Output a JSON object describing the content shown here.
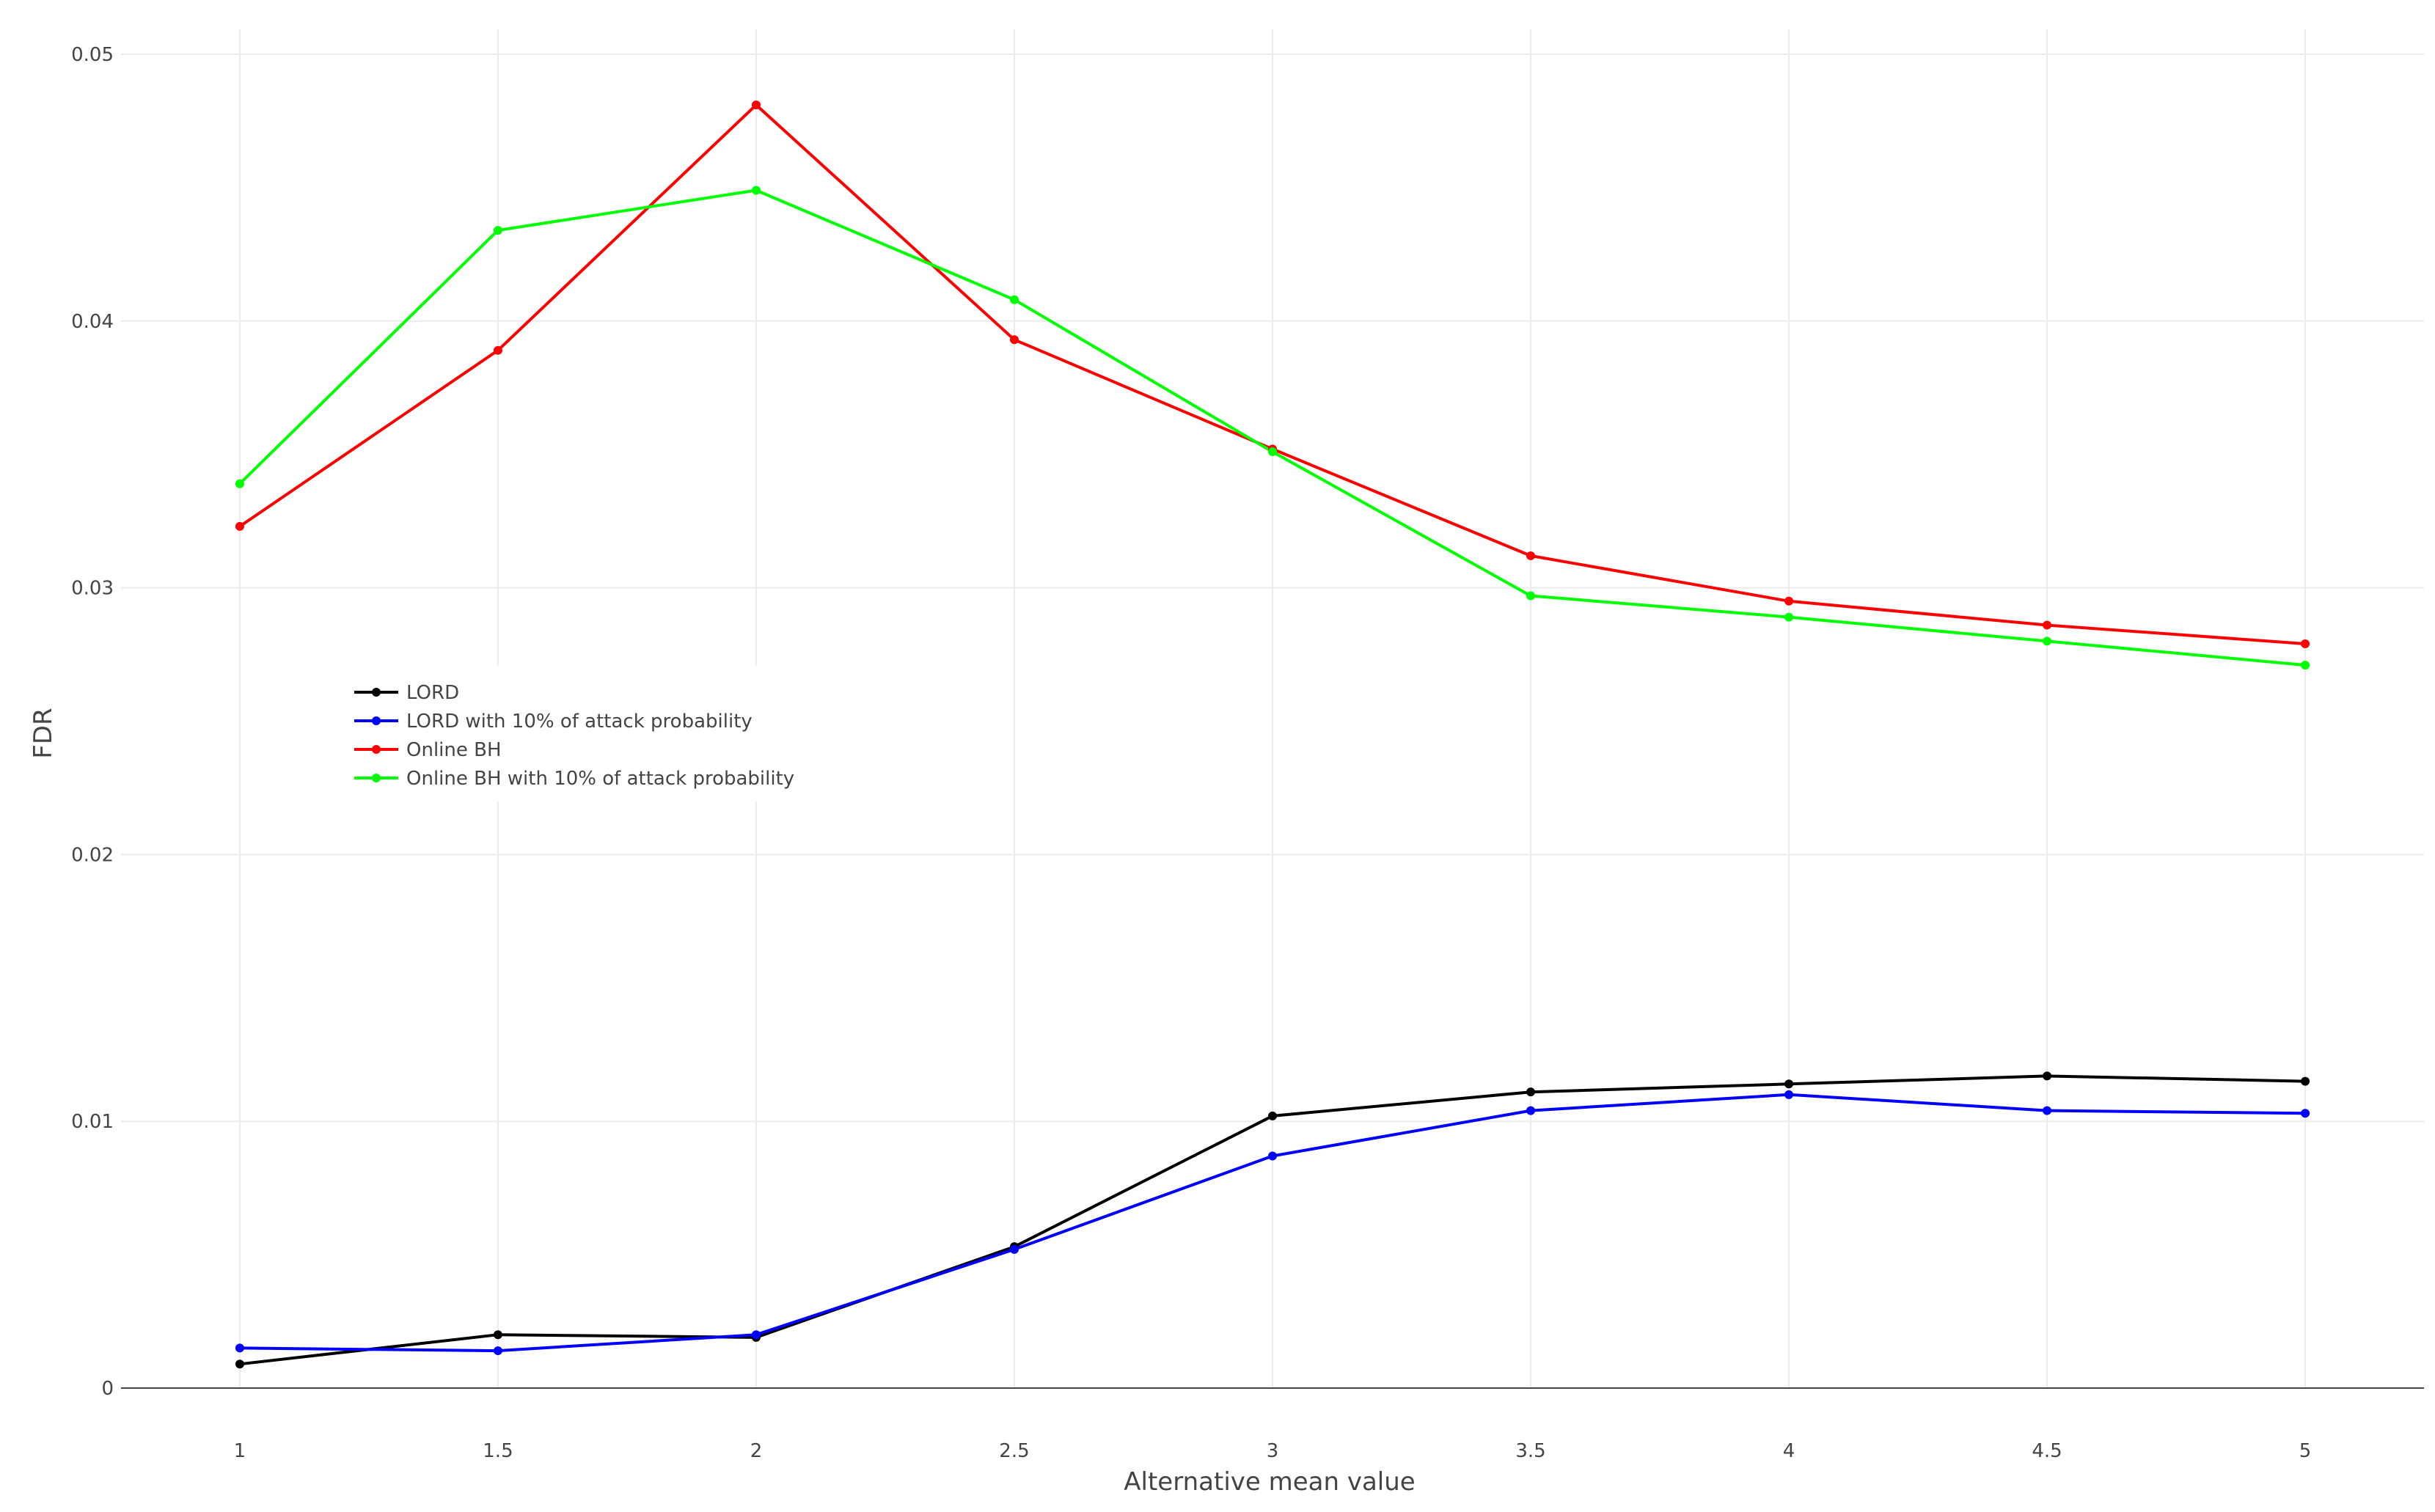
{
  "chart_data": {
    "type": "line",
    "title": "",
    "xlabel": "Alternative mean value",
    "ylabel": "FDR",
    "xlim": [
      0.77,
      5.23
    ],
    "ylim": [
      0,
      0.05
    ],
    "grid": true,
    "legend_position": "left-middle",
    "x": [
      1,
      1.5,
      2,
      2.5,
      3,
      3.5,
      4,
      4.5,
      5
    ],
    "x_tick_labels": [
      "1",
      "1.5",
      "2",
      "2.5",
      "3",
      "3.5",
      "4",
      "4.5",
      "5"
    ],
    "y_ticks": [
      0,
      0.01,
      0.02,
      0.03,
      0.04,
      0.05
    ],
    "y_tick_labels": [
      "0",
      "0.01",
      "0.02",
      "0.03",
      "0.04",
      "0.05"
    ],
    "series": [
      {
        "name": "LORD",
        "color": "#000000",
        "values": [
          0.0009,
          0.002,
          0.0019,
          0.0053,
          0.0102,
          0.0111,
          0.0114,
          0.0117,
          0.0115
        ]
      },
      {
        "name": "LORD with 10% of attack probability",
        "color": "#0000ff",
        "values": [
          0.0015,
          0.0014,
          0.002,
          0.0052,
          0.0087,
          0.0104,
          0.011,
          0.0104,
          0.0103
        ]
      },
      {
        "name": "Online BH",
        "color": "#ff0000",
        "values": [
          0.0323,
          0.0389,
          0.0481,
          0.0393,
          0.0352,
          0.0312,
          0.0295,
          0.0286,
          0.0279
        ]
      },
      {
        "name": "Online BH with 10% of attack probability",
        "color": "#00ff00",
        "values": [
          0.0339,
          0.0434,
          0.0449,
          0.0408,
          0.0351,
          0.0297,
          0.0289,
          0.028,
          0.0271
        ]
      }
    ]
  }
}
